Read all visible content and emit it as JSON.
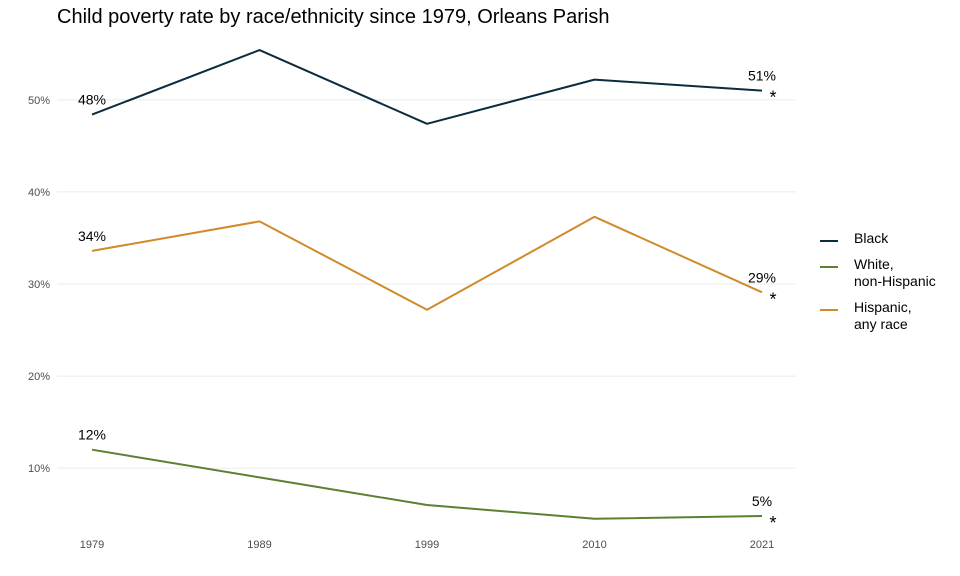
{
  "title": "Child poverty rate by race/ethnicity since 1979, Orleans Parish",
  "chart_data": {
    "type": "line",
    "title": "Child poverty rate by race/ethnicity since 1979, Orleans Parish",
    "xlabel": "",
    "ylabel": "",
    "x": [
      "1979",
      "1989",
      "1999",
      "2010",
      "2021"
    ],
    "y_ticks": [
      0.1,
      0.2,
      0.3,
      0.4,
      0.5
    ],
    "y_tick_labels": [
      "10%",
      "20%",
      "30%",
      "40%",
      "50%"
    ],
    "ylim": [
      0.035,
      0.565
    ],
    "grid": "horizontal major",
    "legend_position": "right",
    "series": [
      {
        "name": "Black",
        "color": "#0d2b3e",
        "values": [
          0.484,
          0.554,
          0.474,
          0.522,
          0.51
        ],
        "labels": [
          {
            "index": 0,
            "text": "48%",
            "star": false
          },
          {
            "index": 4,
            "text": "51%",
            "star": true
          }
        ]
      },
      {
        "name": "White,\nnon-Hispanic",
        "color": "#5a8232",
        "values": [
          0.12,
          0.09,
          0.06,
          0.045,
          0.048
        ],
        "labels": [
          {
            "index": 0,
            "text": "12%",
            "star": false
          },
          {
            "index": 4,
            "text": "5%",
            "star": true
          }
        ]
      },
      {
        "name": "Hispanic,\nany race",
        "color": "#d08a2c",
        "values": [
          0.336,
          0.368,
          0.272,
          0.373,
          0.291
        ],
        "labels": [
          {
            "index": 0,
            "text": "34%",
            "star": false
          },
          {
            "index": 4,
            "text": "29%",
            "star": true
          }
        ]
      }
    ],
    "star_symbol": "*"
  }
}
